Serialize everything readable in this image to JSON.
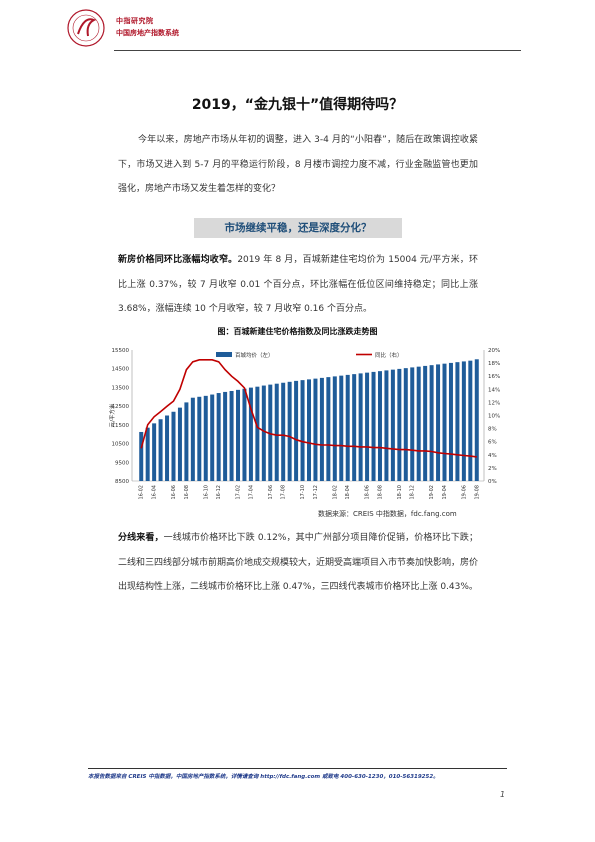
{
  "header": {
    "org_name": "中指研究院",
    "org_sub": "中国房地产指数系统",
    "colors": {
      "brand": "#b0172a"
    }
  },
  "title": "2019，“金九银十”值得期待吗？",
  "intro": "今年以来，房地产市场从年初的调整，进入 3-4 月的“小阳春”，随后在政策调控收紧下，市场又进入到 5-7 月的平稳运行阶段，8 月楼市调控力度不减，行业金融监管也更加强化，房地产市场又发生着怎样的变化？",
  "section_title": "市场继续平稳，还是深度分化？",
  "para2": {
    "lead": "新房价格同环比涨幅均收窄。",
    "text": "2019 年 8 月，百城新建住宅均价为 15004 元/平方米，环比上涨 0.37%，较 7 月收窄 0.01 个百分点，环比涨幅在低位区间维持稳定；同比上涨 3.68%，涨幅连续 10 个月收窄，较 7 月收窄 0.16 个百分点。"
  },
  "chart_title": "图：百城新建住宅价格指数及同比涨跌走势图",
  "chart_data": {
    "type": "bar",
    "title": "图：百城新建住宅价格指数及同比涨跌走势图",
    "ylabel": "元/平方米",
    "ylim": [
      8500,
      15500
    ],
    "y2lim": [
      0,
      20
    ],
    "yticks": [
      "8500",
      "9500",
      "10500",
      "11500",
      "12500",
      "13500",
      "14500",
      "15500"
    ],
    "y2ticks": [
      "0%",
      "2%",
      "4%",
      "6%",
      "8%",
      "10%",
      "12%",
      "14%",
      "16%",
      "18%",
      "20%"
    ],
    "xtick_labels": [
      "16-02",
      "16-04",
      "16-06",
      "16-08",
      "16-10",
      "16-12",
      "17-02",
      "17-04",
      "17-06",
      "17-08",
      "17-10",
      "17-12",
      "18-02",
      "18-04",
      "18-06",
      "18-08",
      "18-10",
      "18-12",
      "19-02",
      "19-04",
      "19-06",
      "19-08"
    ],
    "legend": [
      "百城均价（左）",
      "同比（右）"
    ],
    "legend_position": "top",
    "colors": {
      "bar": "#1f5c99",
      "line": "#c00000"
    },
    "series": [
      {
        "name": "百城均价（左）",
        "type": "bar",
        "values": [
          11120,
          11350,
          11580,
          11800,
          12000,
          12200,
          12420,
          12700,
          12950,
          13000,
          13050,
          13120,
          13200,
          13260,
          13310,
          13370,
          13430,
          13490,
          13540,
          13600,
          13650,
          13700,
          13750,
          13800,
          13850,
          13890,
          13930,
          13970,
          14010,
          14050,
          14090,
          14130,
          14170,
          14210,
          14250,
          14290,
          14330,
          14370,
          14410,
          14450,
          14490,
          14530,
          14570,
          14610,
          14650,
          14690,
          14730,
          14770,
          14810,
          14850,
          14890,
          14930,
          15004
        ]
      },
      {
        "name": "同比（右）",
        "type": "line",
        "values": [
          5.0,
          8.6,
          9.8,
          10.6,
          11.4,
          12.2,
          14.0,
          17.0,
          18.2,
          18.5,
          18.5,
          18.5,
          18.2,
          17.0,
          16.0,
          15.2,
          14.2,
          11.0,
          8.2,
          7.6,
          7.2,
          7.0,
          7.0,
          6.8,
          6.3,
          6.0,
          5.8,
          5.6,
          5.5,
          5.5,
          5.4,
          5.4,
          5.3,
          5.3,
          5.2,
          5.2,
          5.1,
          5.1,
          5.0,
          4.9,
          4.8,
          4.8,
          4.7,
          4.6,
          4.6,
          4.5,
          4.3,
          4.2,
          4.1,
          4.0,
          3.9,
          3.8,
          3.68
        ]
      }
    ]
  },
  "source": "数据来源：CREIS 中指数据，fdc.fang.com",
  "para3": {
    "lead": "分线来看，",
    "text": "一线城市价格环比下跌 0.12%，其中广州部分项目降价促销，价格环比下跌；二线和三四线部分城市前期高价地成交规模较大，近期受高端项目入市节奏加快影响，房价出现结构性上涨，二线城市价格环比上涨 0.47%，三四线代表城市价格环比上涨 0.43%。"
  },
  "footer": "本报告数据来自 CREIS 中指数据，中国房地产指数系统，详情请查询 http://fdc.fang.com 或致电 400-630-1230，010-56319252。",
  "page_number": "1"
}
